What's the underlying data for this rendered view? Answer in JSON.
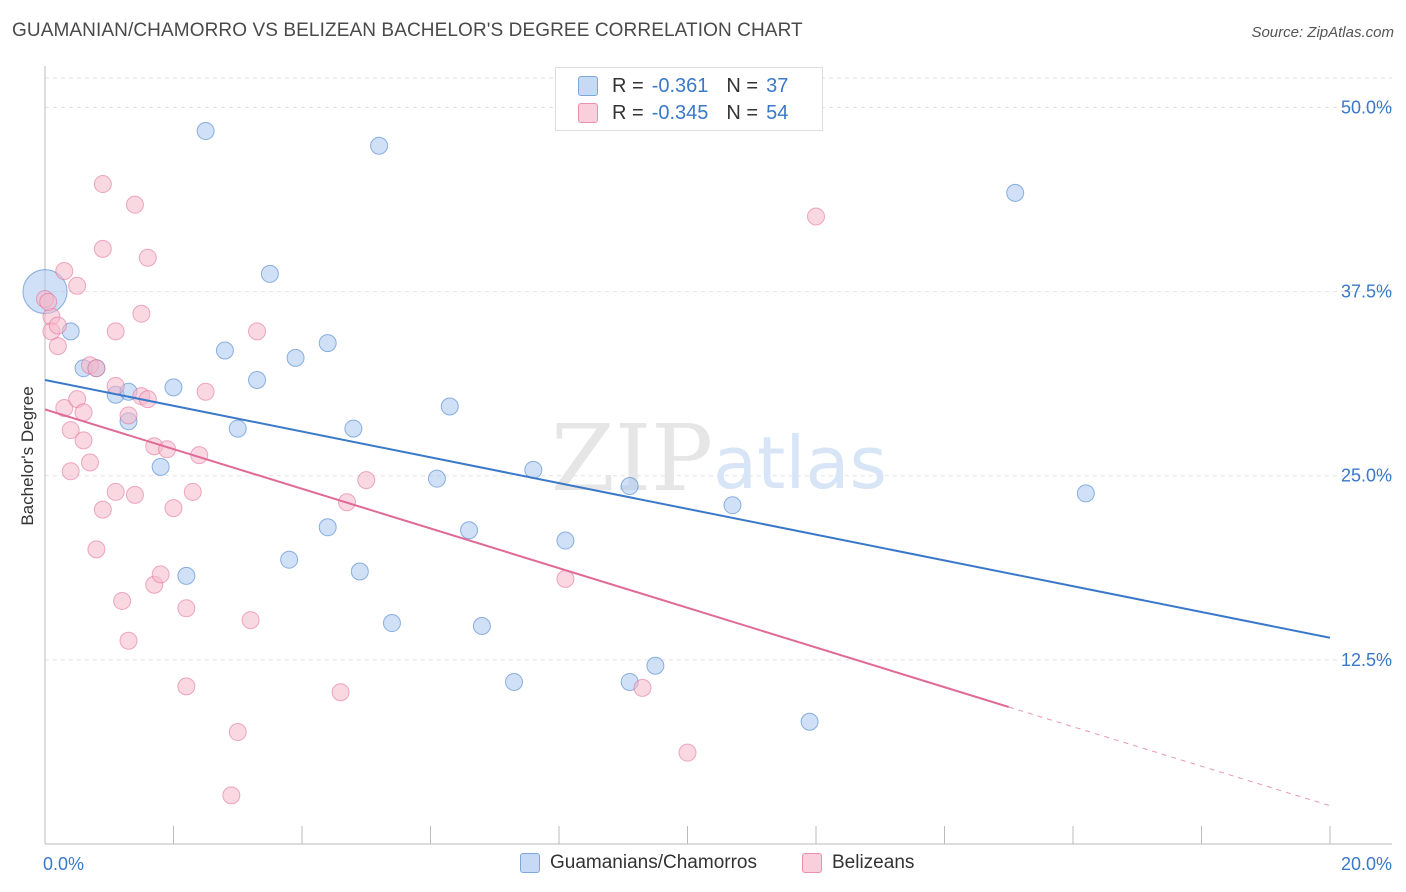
{
  "header": {
    "title": "GUAMANIAN/CHAMORRO VS BELIZEAN BACHELOR'S DEGREE CORRELATION CHART",
    "source": "Source: ZipAtlas.com"
  },
  "watermark": {
    "part1": "ZIP",
    "part2": "atlas"
  },
  "legend": {
    "r_label": "R =",
    "n_label": "N =",
    "entries": [
      {
        "r": "-0.361",
        "n": "37",
        "color": "#a9c8f0"
      },
      {
        "r": "-0.345",
        "n": "54",
        "color": "#f5b8cb"
      }
    ]
  },
  "chart_data": {
    "type": "scatter",
    "title": "GUAMANIAN/CHAMORRO VS BELIZEAN BACHELOR'S DEGREE CORRELATION CHART",
    "xlabel": "",
    "ylabel": "Bachelor's Degree",
    "xlim": [
      0,
      20
    ],
    "ylim": [
      0,
      52
    ],
    "x_tick_labels": [
      "0.0%",
      "20.0%"
    ],
    "y_ticks": [
      12.5,
      25.0,
      37.5,
      50.0
    ],
    "y_tick_labels": [
      "12.5%",
      "25.0%",
      "37.5%",
      "50.0%"
    ],
    "grid": true,
    "legend_position": "top-center",
    "series": [
      {
        "name": "Guamanians/Chamorros",
        "color": "#3a78c9",
        "fill": "#a9c8f0",
        "r": -0.361,
        "n": 37,
        "trend": {
          "x": [
            0,
            20
          ],
          "y": [
            31.5,
            14.0
          ]
        },
        "points": [
          [
            0.4,
            34.8
          ],
          [
            0.6,
            32.3
          ],
          [
            0.8,
            32.3
          ],
          [
            1.1,
            30.5
          ],
          [
            1.3,
            30.7
          ],
          [
            1.3,
            28.7
          ],
          [
            1.8,
            25.6
          ],
          [
            2.0,
            31.0
          ],
          [
            2.2,
            18.2
          ],
          [
            2.5,
            48.4
          ],
          [
            2.8,
            33.5
          ],
          [
            3.0,
            28.2
          ],
          [
            3.3,
            31.5
          ],
          [
            3.5,
            38.7
          ],
          [
            3.8,
            19.3
          ],
          [
            3.9,
            33.0
          ],
          [
            4.4,
            21.5
          ],
          [
            4.4,
            34.0
          ],
          [
            4.8,
            28.2
          ],
          [
            4.9,
            18.5
          ],
          [
            5.2,
            47.4
          ],
          [
            5.4,
            15.0
          ],
          [
            6.1,
            24.8
          ],
          [
            6.3,
            29.7
          ],
          [
            6.6,
            21.3
          ],
          [
            6.8,
            14.8
          ],
          [
            7.3,
            11.0
          ],
          [
            7.6,
            25.4
          ],
          [
            8.1,
            20.6
          ],
          [
            9.1,
            11.0
          ],
          [
            9.1,
            24.3
          ],
          [
            9.5,
            12.1
          ],
          [
            10.7,
            23.0
          ],
          [
            11.9,
            8.3
          ],
          [
            15.1,
            44.2
          ],
          [
            16.2,
            23.8
          ],
          [
            0.0,
            37.5
          ]
        ]
      },
      {
        "name": "Belizeans",
        "color": "#e06a97",
        "fill": "#f5b8cb",
        "r": -0.345,
        "n": 54,
        "trend": {
          "x": [
            0,
            15
          ],
          "y": [
            29.5,
            9.3
          ]
        },
        "trend_dashed": {
          "x": [
            15,
            20
          ],
          "y": [
            9.3,
            2.6
          ]
        },
        "points": [
          [
            0.1,
            35.8
          ],
          [
            0.1,
            34.8
          ],
          [
            0.2,
            33.8
          ],
          [
            0.2,
            35.2
          ],
          [
            0.3,
            29.6
          ],
          [
            0.3,
            38.9
          ],
          [
            0.4,
            28.1
          ],
          [
            0.4,
            25.3
          ],
          [
            0.5,
            37.9
          ],
          [
            0.5,
            30.2
          ],
          [
            0.6,
            27.4
          ],
          [
            0.6,
            29.3
          ],
          [
            0.7,
            32.5
          ],
          [
            0.7,
            25.9
          ],
          [
            0.8,
            32.3
          ],
          [
            0.8,
            20.0
          ],
          [
            0.9,
            22.7
          ],
          [
            0.9,
            44.8
          ],
          [
            0.9,
            40.4
          ],
          [
            1.1,
            31.1
          ],
          [
            1.1,
            34.8
          ],
          [
            1.1,
            23.9
          ],
          [
            1.2,
            16.5
          ],
          [
            1.3,
            29.1
          ],
          [
            1.3,
            13.8
          ],
          [
            1.4,
            23.7
          ],
          [
            1.4,
            43.4
          ],
          [
            1.5,
            30.4
          ],
          [
            1.5,
            36.0
          ],
          [
            1.6,
            30.2
          ],
          [
            1.6,
            39.8
          ],
          [
            1.7,
            27.0
          ],
          [
            1.7,
            17.6
          ],
          [
            1.8,
            18.3
          ],
          [
            1.9,
            26.8
          ],
          [
            2.0,
            22.8
          ],
          [
            2.2,
            10.7
          ],
          [
            2.2,
            16.0
          ],
          [
            2.3,
            23.9
          ],
          [
            2.4,
            26.4
          ],
          [
            2.5,
            30.7
          ],
          [
            2.9,
            3.3
          ],
          [
            3.0,
            7.6
          ],
          [
            3.2,
            15.2
          ],
          [
            3.3,
            34.8
          ],
          [
            4.6,
            10.3
          ],
          [
            4.7,
            23.2
          ],
          [
            5.0,
            24.7
          ],
          [
            8.1,
            18.0
          ],
          [
            9.3,
            10.6
          ],
          [
            10.0,
            6.2
          ],
          [
            12.0,
            42.6
          ],
          [
            0.0,
            37.0
          ],
          [
            0.05,
            36.8
          ]
        ]
      }
    ]
  }
}
